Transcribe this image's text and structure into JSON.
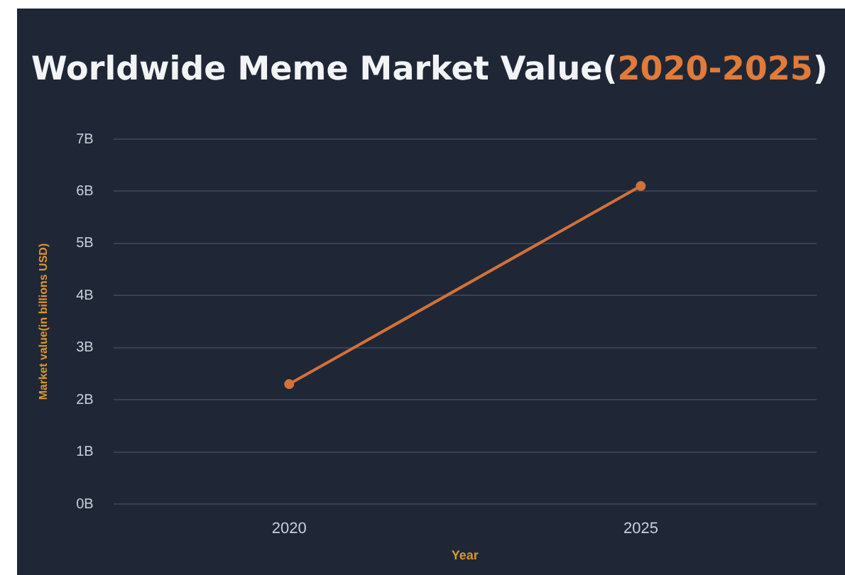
{
  "chart_data": {
    "type": "line",
    "title": "Worldwide Meme Market Value(2020-2025)",
    "xlabel": "Year",
    "ylabel": "Market value(in billions USD)",
    "categories": [
      "2020",
      "2025"
    ],
    "series": [
      {
        "color": "#d4713a",
        "values": [
          2.3,
          6.1
        ]
      }
    ],
    "ylim": [
      0,
      7
    ],
    "yticks": [
      {
        "value": 0,
        "label": "0B"
      },
      {
        "value": 1,
        "label": "1B"
      },
      {
        "value": 2,
        "label": "2B"
      },
      {
        "value": 3,
        "label": "3B"
      },
      {
        "value": 4,
        "label": "4B"
      },
      {
        "value": 5,
        "label": "5B"
      },
      {
        "value": 6,
        "label": "6B"
      },
      {
        "value": 7,
        "label": "7B"
      }
    ],
    "grid": "y",
    "marker": "circle",
    "line_style": "solid",
    "legend": false
  }
}
